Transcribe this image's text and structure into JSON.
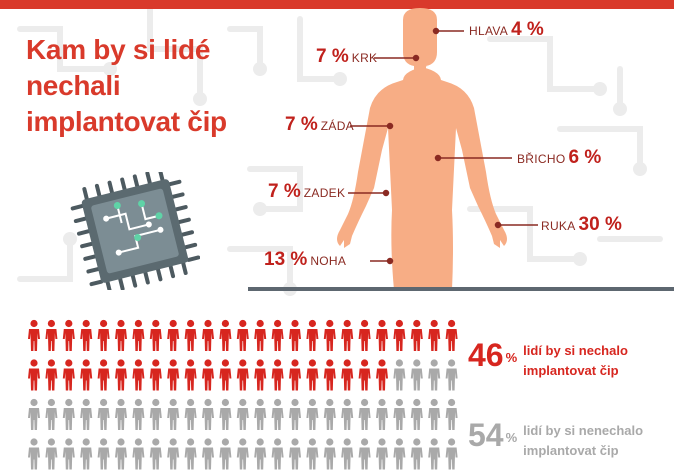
{
  "title": "Kam by si lidé nechali implantovat čip",
  "colors": {
    "accent": "#d93a2b",
    "dark_red": "#c0211c",
    "skin": "#f7ad85",
    "grey": "#a9a9a9",
    "baseline": "#5d6770",
    "chip": "#6f7f86"
  },
  "chart_data": [
    {
      "type": "bar",
      "categories": [
        "HLAVA",
        "KRK",
        "ZÁDA",
        "BŘICHO",
        "ZADEK",
        "RUKA",
        "NOHA"
      ],
      "values": [
        4,
        7,
        7,
        6,
        7,
        30,
        13
      ],
      "unit": "%"
    },
    {
      "type": "pie",
      "categories": [
        "lidí by si nechalo implantovat čip",
        "lidí by si nenechalo implantovat čip"
      ],
      "values": [
        46,
        54
      ],
      "unit": "%",
      "total_icons": 100,
      "icon_rows": 4,
      "icons_per_row": 25
    }
  ],
  "body_labels": [
    {
      "name": "HLAVA",
      "value": 4,
      "side": "right"
    },
    {
      "name": "KRK",
      "value": 7,
      "side": "left"
    },
    {
      "name": "ZÁDA",
      "value": 7,
      "side": "left"
    },
    {
      "name": "BŘICHO",
      "value": 6,
      "side": "right"
    },
    {
      "name": "ZADEK",
      "value": 7,
      "side": "left"
    },
    {
      "name": "RUKA",
      "value": 30,
      "side": "right"
    },
    {
      "name": "NOHA",
      "value": 13,
      "side": "left"
    }
  ],
  "stats": [
    {
      "value": 46,
      "symbol": "%",
      "line1": "lidí by si nechalo",
      "line2": "implantovat čip",
      "color": "#d7261f"
    },
    {
      "value": 54,
      "symbol": "%",
      "line1": "lidí by si nenechalo",
      "line2": "implantovat čip",
      "color": "#a9a9a9"
    }
  ],
  "icons": {
    "chip": "microchip-icon",
    "person": "person-icon",
    "body": "human-body-icon"
  }
}
